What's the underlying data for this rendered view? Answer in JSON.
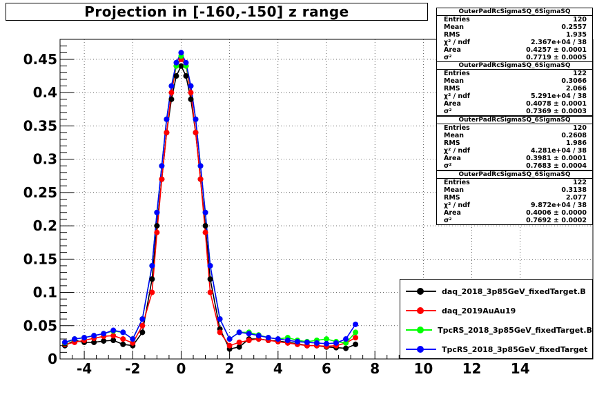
{
  "chart_data": {
    "type": "scatter",
    "title": "Projection in [-160,-150] z range",
    "xlim": [
      -5,
      17
    ],
    "ylim": [
      0,
      0.48
    ],
    "x_ticks": [
      "-4",
      "-2",
      "0",
      "2",
      "4",
      "6",
      "8",
      "10",
      "12",
      "14"
    ],
    "y_ticks": [
      "0",
      "0.05",
      "0.1",
      "0.15",
      "0.2",
      "0.25",
      "0.3",
      "0.35",
      "0.4",
      "0.45"
    ],
    "grid": true,
    "legend_position": "bottom-right",
    "series": [
      {
        "name": "daq_2018_3p85GeV_fixedTarget.B",
        "color": "#000000",
        "x": [
          -4.8,
          -4.4,
          -4.0,
          -3.6,
          -3.2,
          -2.8,
          -2.4,
          -2.0,
          -1.6,
          -1.2,
          -1.0,
          -0.8,
          -0.6,
          -0.4,
          -0.2,
          0.0,
          0.2,
          0.4,
          0.6,
          0.8,
          1.0,
          1.2,
          1.6,
          2.0,
          2.4,
          2.8,
          3.2,
          3.6,
          4.0,
          4.4,
          4.8,
          5.2,
          5.6,
          6.0,
          6.4,
          6.8,
          7.2
        ],
        "y": [
          0.02,
          0.028,
          0.025,
          0.025,
          0.027,
          0.028,
          0.022,
          0.02,
          0.04,
          0.12,
          0.2,
          0.27,
          0.34,
          0.39,
          0.425,
          0.44,
          0.425,
          0.39,
          0.34,
          0.27,
          0.2,
          0.12,
          0.045,
          0.015,
          0.018,
          0.03,
          0.03,
          0.028,
          0.027,
          0.025,
          0.023,
          0.02,
          0.02,
          0.018,
          0.017,
          0.016,
          0.022
        ]
      },
      {
        "name": "daq_2019AuAu19",
        "color": "#ff0000",
        "x": [
          -4.8,
          -4.4,
          -4.0,
          -3.6,
          -3.2,
          -2.8,
          -2.4,
          -2.0,
          -1.6,
          -1.2,
          -1.0,
          -0.8,
          -0.6,
          -0.4,
          -0.2,
          0.0,
          0.2,
          0.4,
          0.6,
          0.8,
          1.0,
          1.2,
          1.6,
          2.0,
          2.4,
          2.8,
          3.2,
          3.6,
          4.0,
          4.4,
          4.8,
          5.2,
          5.6,
          6.0,
          6.4,
          6.8,
          7.2
        ],
        "y": [
          0.022,
          0.025,
          0.028,
          0.031,
          0.034,
          0.035,
          0.03,
          0.024,
          0.05,
          0.1,
          0.19,
          0.27,
          0.34,
          0.4,
          0.44,
          0.45,
          0.44,
          0.4,
          0.34,
          0.27,
          0.19,
          0.1,
          0.04,
          0.02,
          0.025,
          0.028,
          0.03,
          0.028,
          0.026,
          0.024,
          0.022,
          0.02,
          0.02,
          0.019,
          0.02,
          0.024,
          0.032
        ]
      },
      {
        "name": "TpcRS_2018_3p85GeV_fixedTarget.B",
        "color": "#00ff00",
        "x": [
          -4.8,
          -4.4,
          -4.0,
          -3.6,
          -3.2,
          -2.8,
          -2.4,
          -2.0,
          -1.6,
          -1.2,
          -1.0,
          -0.8,
          -0.6,
          -0.4,
          -0.2,
          0.0,
          0.2,
          0.4,
          0.6,
          0.8,
          1.0,
          1.2,
          1.6,
          2.0,
          2.4,
          2.8,
          3.2,
          3.6,
          4.0,
          4.4,
          4.8,
          5.2,
          5.6,
          6.0,
          6.4,
          6.8,
          7.2
        ],
        "y": [
          0.024,
          0.03,
          0.032,
          0.035,
          0.038,
          0.042,
          0.04,
          0.03,
          0.06,
          0.14,
          0.22,
          0.29,
          0.36,
          0.41,
          0.44,
          0.455,
          0.44,
          0.41,
          0.36,
          0.29,
          0.22,
          0.14,
          0.06,
          0.03,
          0.04,
          0.04,
          0.036,
          0.032,
          0.03,
          0.032,
          0.028,
          0.026,
          0.028,
          0.03,
          0.026,
          0.024,
          0.04
        ]
      },
      {
        "name": "TpcRS_2018_3p85GeV_fixedTarget",
        "color": "#0000ff",
        "x": [
          -4.8,
          -4.4,
          -4.0,
          -3.6,
          -3.2,
          -2.8,
          -2.4,
          -2.0,
          -1.6,
          -1.2,
          -1.0,
          -0.8,
          -0.6,
          -0.4,
          -0.2,
          0.0,
          0.2,
          0.4,
          0.6,
          0.8,
          1.0,
          1.2,
          1.6,
          2.0,
          2.4,
          2.8,
          3.2,
          3.6,
          4.0,
          4.4,
          4.8,
          5.2,
          5.6,
          6.0,
          6.4,
          6.8,
          7.2
        ],
        "y": [
          0.025,
          0.03,
          0.032,
          0.035,
          0.038,
          0.043,
          0.04,
          0.03,
          0.06,
          0.14,
          0.22,
          0.29,
          0.36,
          0.41,
          0.445,
          0.46,
          0.445,
          0.41,
          0.36,
          0.29,
          0.22,
          0.14,
          0.06,
          0.03,
          0.04,
          0.038,
          0.035,
          0.032,
          0.03,
          0.028,
          0.026,
          0.025,
          0.024,
          0.023,
          0.024,
          0.03,
          0.052
        ]
      }
    ]
  },
  "stats_boxes": [
    {
      "title": "OuterPadRcSigmaSQ_6SigmaSQ",
      "rows": [
        {
          "label": "Entries",
          "value": "120"
        },
        {
          "label": "Mean",
          "value": "0.2557"
        },
        {
          "label": "RMS",
          "value": "1.935"
        },
        {
          "label": "χ² / ndf",
          "value": "2.367e+04 / 38"
        },
        {
          "label": "Area",
          "value": "0.4257 ± 0.0001"
        },
        {
          "label": "σ²",
          "value": "0.7719 ± 0.0005"
        }
      ]
    },
    {
      "title": "OuterPadRcSigmaSQ_6SigmaSQ",
      "rows": [
        {
          "label": "Entries",
          "value": "122"
        },
        {
          "label": "Mean",
          "value": "0.3066"
        },
        {
          "label": "RMS",
          "value": "2.066"
        },
        {
          "label": "χ² / ndf",
          "value": "5.291e+04 / 38"
        },
        {
          "label": "Area",
          "value": "0.4078 ± 0.0001"
        },
        {
          "label": "σ²",
          "value": "0.7369 ± 0.0003"
        }
      ]
    },
    {
      "title": "OuterPadRcSigmaSQ_6SigmaSQ",
      "rows": [
        {
          "label": "Entries",
          "value": "120"
        },
        {
          "label": "Mean",
          "value": "0.2608"
        },
        {
          "label": "RMS",
          "value": "1.986"
        },
        {
          "label": "χ² / ndf",
          "value": "4.281e+04 / 38"
        },
        {
          "label": "Area",
          "value": "0.3981 ± 0.0001"
        },
        {
          "label": "σ²",
          "value": "0.7683 ± 0.0004"
        }
      ]
    },
    {
      "title": "OuterPadRcSigmaSQ_6SigmaSQ",
      "rows": [
        {
          "label": "Entries",
          "value": "122"
        },
        {
          "label": "Mean",
          "value": "0.3138"
        },
        {
          "label": "RMS",
          "value": "2.077"
        },
        {
          "label": "χ² / ndf",
          "value": "9.872e+04 / 38"
        },
        {
          "label": "Area",
          "value": "0.4006 ± 0.0000"
        },
        {
          "label": "σ²",
          "value": "0.7692 ± 0.0002"
        }
      ]
    }
  ]
}
